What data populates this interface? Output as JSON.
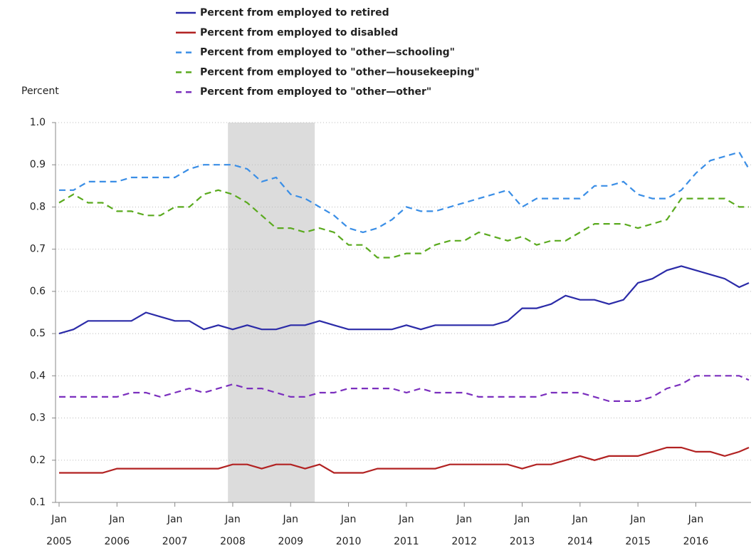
{
  "chart_data": {
    "type": "line",
    "y_axis_label": "Percent",
    "x": [
      "2005-01",
      "2005-04",
      "2005-07",
      "2005-10",
      "2006-01",
      "2006-04",
      "2006-07",
      "2006-10",
      "2007-01",
      "2007-04",
      "2007-07",
      "2007-10",
      "2008-01",
      "2008-04",
      "2008-07",
      "2008-10",
      "2009-01",
      "2009-04",
      "2009-07",
      "2009-10",
      "2010-01",
      "2010-04",
      "2010-07",
      "2010-10",
      "2011-01",
      "2011-04",
      "2011-07",
      "2011-10",
      "2012-01",
      "2012-04",
      "2012-07",
      "2012-10",
      "2013-01",
      "2013-04",
      "2013-07",
      "2013-10",
      "2014-01",
      "2014-04",
      "2014-07",
      "2014-10",
      "2015-01",
      "2015-04",
      "2015-07",
      "2015-10",
      "2016-01",
      "2016-04",
      "2016-07",
      "2016-10",
      "2016-12"
    ],
    "series": [
      {
        "name": "Percent from employed to retired",
        "color": "#2b2ba8",
        "dashed": false,
        "values": [
          0.5,
          0.51,
          0.53,
          0.53,
          0.53,
          0.53,
          0.55,
          0.54,
          0.53,
          0.53,
          0.51,
          0.52,
          0.51,
          0.52,
          0.51,
          0.51,
          0.52,
          0.52,
          0.53,
          0.52,
          0.51,
          0.51,
          0.51,
          0.51,
          0.52,
          0.51,
          0.52,
          0.52,
          0.52,
          0.52,
          0.52,
          0.53,
          0.56,
          0.56,
          0.57,
          0.59,
          0.58,
          0.58,
          0.57,
          0.58,
          0.62,
          0.63,
          0.65,
          0.66,
          0.65,
          0.64,
          0.63,
          0.61,
          0.62
        ]
      },
      {
        "name": "Percent from employed to disabled",
        "color": "#b22222",
        "dashed": false,
        "values": [
          0.17,
          0.17,
          0.17,
          0.17,
          0.18,
          0.18,
          0.18,
          0.18,
          0.18,
          0.18,
          0.18,
          0.18,
          0.19,
          0.19,
          0.18,
          0.19,
          0.19,
          0.18,
          0.19,
          0.17,
          0.17,
          0.17,
          0.18,
          0.18,
          0.18,
          0.18,
          0.18,
          0.19,
          0.19,
          0.19,
          0.19,
          0.19,
          0.18,
          0.19,
          0.19,
          0.2,
          0.21,
          0.2,
          0.21,
          0.21,
          0.21,
          0.22,
          0.23,
          0.23,
          0.22,
          0.22,
          0.21,
          0.22,
          0.23
        ]
      },
      {
        "name": "Percent from employed to \"other—schooling\"",
        "color": "#3a8ee6",
        "dashed": true,
        "values": [
          0.84,
          0.84,
          0.86,
          0.86,
          0.86,
          0.87,
          0.87,
          0.87,
          0.87,
          0.89,
          0.9,
          0.9,
          0.9,
          0.89,
          0.86,
          0.87,
          0.83,
          0.82,
          0.8,
          0.78,
          0.75,
          0.74,
          0.75,
          0.77,
          0.8,
          0.79,
          0.79,
          0.8,
          0.81,
          0.82,
          0.83,
          0.84,
          0.8,
          0.82,
          0.82,
          0.82,
          0.82,
          0.85,
          0.85,
          0.86,
          0.83,
          0.82,
          0.82,
          0.84,
          0.88,
          0.91,
          0.92,
          0.93,
          0.89
        ]
      },
      {
        "name": "Percent from employed to \"other—housekeeping\"",
        "color": "#5aaa1e",
        "dashed": true,
        "values": [
          0.81,
          0.83,
          0.81,
          0.81,
          0.79,
          0.79,
          0.78,
          0.78,
          0.8,
          0.8,
          0.83,
          0.84,
          0.83,
          0.81,
          0.78,
          0.75,
          0.75,
          0.74,
          0.75,
          0.74,
          0.71,
          0.71,
          0.68,
          0.68,
          0.69,
          0.69,
          0.71,
          0.72,
          0.72,
          0.74,
          0.73,
          0.72,
          0.73,
          0.71,
          0.72,
          0.72,
          0.74,
          0.76,
          0.76,
          0.76,
          0.75,
          0.76,
          0.77,
          0.82,
          0.82,
          0.82,
          0.82,
          0.8,
          0.8
        ]
      },
      {
        "name": "Percent from employed to \"other—other\"",
        "color": "#7b2fbe",
        "dashed": true,
        "values": [
          0.35,
          0.35,
          0.35,
          0.35,
          0.35,
          0.36,
          0.36,
          0.35,
          0.36,
          0.37,
          0.36,
          0.37,
          0.38,
          0.37,
          0.37,
          0.36,
          0.35,
          0.35,
          0.36,
          0.36,
          0.37,
          0.37,
          0.37,
          0.37,
          0.36,
          0.37,
          0.36,
          0.36,
          0.36,
          0.35,
          0.35,
          0.35,
          0.35,
          0.35,
          0.36,
          0.36,
          0.36,
          0.35,
          0.34,
          0.34,
          0.34,
          0.35,
          0.37,
          0.38,
          0.4,
          0.4,
          0.4,
          0.4,
          0.39
        ]
      }
    ],
    "xlim": [
      "2005-01",
      "2016-12"
    ],
    "xticks": [
      {
        "value": "2005-01",
        "label": "Jan 2005"
      },
      {
        "value": "2006-01",
        "label": "Jan 2006"
      },
      {
        "value": "2007-01",
        "label": "Jan 2007"
      },
      {
        "value": "2008-01",
        "label": "Jan 2008"
      },
      {
        "value": "2009-01",
        "label": "Jan 2009"
      },
      {
        "value": "2010-01",
        "label": "Jan 2010"
      },
      {
        "value": "2011-01",
        "label": "Jan 2011"
      },
      {
        "value": "2012-01",
        "label": "Jan 2012"
      },
      {
        "value": "2013-01",
        "label": "Jan 2013"
      },
      {
        "value": "2014-01",
        "label": "Jan 2014"
      },
      {
        "value": "2015-01",
        "label": "Jan 2015"
      },
      {
        "value": "2016-01",
        "label": "Jan 2016"
      }
    ],
    "ylim": [
      0.1,
      1
    ],
    "yticks": [
      0.1,
      0.2,
      0.3,
      0.4,
      0.5,
      0.6,
      0.7,
      0.8,
      0.9,
      {
        "value": 1,
        "label": "1.0"
      }
    ],
    "grid": true,
    "shaded_period": [
      "2007-12",
      "2009-06"
    ],
    "shade_color": "#dcdcdc"
  }
}
